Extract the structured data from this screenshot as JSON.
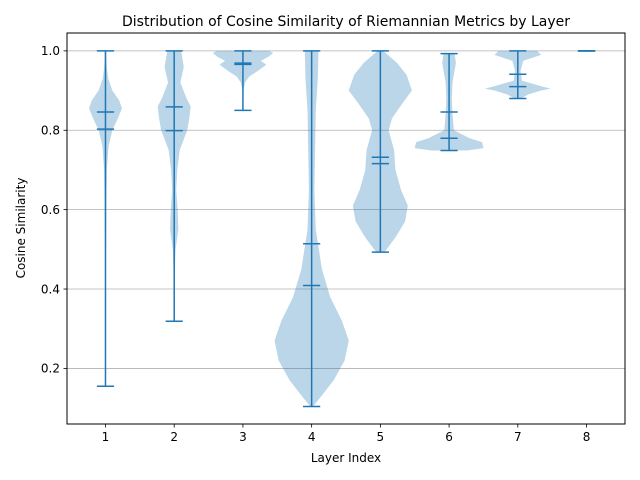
{
  "chart_data": {
    "type": "violin",
    "title": "Distribution of Cosine Similarity of Riemannian Metrics by Layer",
    "xlabel": "Layer Index",
    "ylabel": "Cosine Similarity",
    "categories": [
      "1",
      "2",
      "3",
      "4",
      "5",
      "6",
      "7",
      "8"
    ],
    "yticks": [
      "0.2",
      "0.4",
      "0.6",
      "0.8",
      "1.0"
    ],
    "ylim": [
      0.06,
      1.045
    ],
    "grid": "y",
    "colors": {
      "body": "#1f77b4",
      "body_alpha": 0.3,
      "lines": "#1f77b4",
      "grid": "#b0b0b0"
    },
    "series": [
      {
        "category": "1",
        "min": 0.155,
        "max": 1.0,
        "mean": 0.803,
        "median": 0.846,
        "density": [
          [
            0.155,
            0.002
          ],
          [
            0.3,
            0.004
          ],
          [
            0.5,
            0.008
          ],
          [
            0.6,
            0.012
          ],
          [
            0.7,
            0.02
          ],
          [
            0.76,
            0.045
          ],
          [
            0.8,
            0.1
          ],
          [
            0.83,
            0.18
          ],
          [
            0.855,
            0.24
          ],
          [
            0.875,
            0.2
          ],
          [
            0.9,
            0.1
          ],
          [
            0.93,
            0.04
          ],
          [
            0.96,
            0.018
          ],
          [
            1.0,
            0.008
          ]
        ]
      },
      {
        "category": "2",
        "min": 0.319,
        "max": 1.0,
        "mean": 0.799,
        "median": 0.859,
        "density": [
          [
            0.319,
            0.004
          ],
          [
            0.42,
            0.005
          ],
          [
            0.5,
            0.02
          ],
          [
            0.55,
            0.06
          ],
          [
            0.6,
            0.05
          ],
          [
            0.65,
            0.03
          ],
          [
            0.7,
            0.045
          ],
          [
            0.75,
            0.08
          ],
          [
            0.8,
            0.19
          ],
          [
            0.83,
            0.22
          ],
          [
            0.86,
            0.24
          ],
          [
            0.88,
            0.18
          ],
          [
            0.92,
            0.09
          ],
          [
            0.96,
            0.14
          ],
          [
            1.0,
            0.1
          ]
        ]
      },
      {
        "category": "3",
        "min": 0.85,
        "max": 1.0,
        "mean": 0.966,
        "median": 0.969,
        "density": [
          [
            0.85,
            0.005
          ],
          [
            0.9,
            0.006
          ],
          [
            0.92,
            0.03
          ],
          [
            0.935,
            0.09
          ],
          [
            0.95,
            0.22
          ],
          [
            0.965,
            0.34
          ],
          [
            0.975,
            0.26
          ],
          [
            0.985,
            0.37
          ],
          [
            0.995,
            0.44
          ],
          [
            1.0,
            0.38
          ]
        ]
      },
      {
        "category": "4",
        "min": 0.104,
        "max": 1.0,
        "mean": 0.409,
        "median": 0.514,
        "density": [
          [
            0.104,
            0.02
          ],
          [
            0.13,
            0.14
          ],
          [
            0.17,
            0.32
          ],
          [
            0.22,
            0.48
          ],
          [
            0.27,
            0.54
          ],
          [
            0.32,
            0.44
          ],
          [
            0.38,
            0.27
          ],
          [
            0.45,
            0.15
          ],
          [
            0.55,
            0.06
          ],
          [
            0.65,
            0.04
          ],
          [
            0.75,
            0.05
          ],
          [
            0.85,
            0.06
          ],
          [
            0.93,
            0.09
          ],
          [
            1.0,
            0.1
          ]
        ]
      },
      {
        "category": "5",
        "min": 0.493,
        "max": 1.0,
        "mean": 0.716,
        "median": 0.732,
        "density": [
          [
            0.493,
            0.06
          ],
          [
            0.53,
            0.22
          ],
          [
            0.57,
            0.36
          ],
          [
            0.61,
            0.4
          ],
          [
            0.65,
            0.3
          ],
          [
            0.7,
            0.22
          ],
          [
            0.75,
            0.2
          ],
          [
            0.8,
            0.12
          ],
          [
            0.83,
            0.17
          ],
          [
            0.87,
            0.33
          ],
          [
            0.9,
            0.46
          ],
          [
            0.94,
            0.38
          ],
          [
            0.97,
            0.24
          ],
          [
            1.0,
            0.04
          ]
        ]
      },
      {
        "category": "6",
        "min": 0.749,
        "max": 0.993,
        "mean": 0.78,
        "median": 0.846,
        "density": [
          [
            0.749,
            0.26
          ],
          [
            0.755,
            0.5
          ],
          [
            0.77,
            0.48
          ],
          [
            0.78,
            0.3
          ],
          [
            0.8,
            0.07
          ],
          [
            0.84,
            0.05
          ],
          [
            0.88,
            0.04
          ],
          [
            0.92,
            0.05
          ],
          [
            0.95,
            0.08
          ],
          [
            0.97,
            0.1
          ],
          [
            0.993,
            0.08
          ]
        ]
      },
      {
        "category": "7",
        "min": 0.88,
        "max": 1.0,
        "mean": 0.91,
        "median": 0.941,
        "density": [
          [
            0.88,
            0.05
          ],
          [
            0.89,
            0.15
          ],
          [
            0.9,
            0.34
          ],
          [
            0.905,
            0.48
          ],
          [
            0.91,
            0.36
          ],
          [
            0.925,
            0.06
          ],
          [
            0.95,
            0.04
          ],
          [
            0.975,
            0.08
          ],
          [
            0.99,
            0.34
          ],
          [
            1.0,
            0.28
          ]
        ]
      },
      {
        "category": "8",
        "min": 1.0,
        "max": 1.0,
        "mean": 1.0,
        "median": 1.0,
        "density": []
      }
    ]
  }
}
